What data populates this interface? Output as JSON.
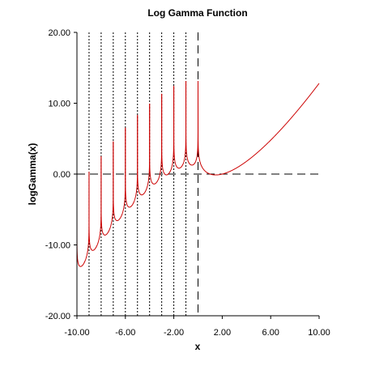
{
  "chart_data": {
    "type": "line",
    "title": "Log Gamma Function",
    "xlabel": "x",
    "ylabel": "logGamma(x)",
    "xlim": [
      -10,
      10
    ],
    "ylim": [
      -20,
      20
    ],
    "x_ticks": [
      "-10.00",
      "-6.00",
      "-2.00",
      "2.00",
      "6.00",
      "10.00"
    ],
    "y_ticks": [
      "20.00",
      "10.00",
      "0.00",
      "-10.00",
      "-20.00"
    ],
    "grid": false,
    "function": "logGamma(x)",
    "asymptotes_x": [
      -9,
      -8,
      -7,
      -6,
      -5,
      -4,
      -3,
      -2,
      -1
    ],
    "zero_line_x": 0,
    "baseline_y": 0,
    "colors": {
      "series": "#cc0000",
      "axes": "#000000",
      "background": "#ffffff"
    }
  }
}
